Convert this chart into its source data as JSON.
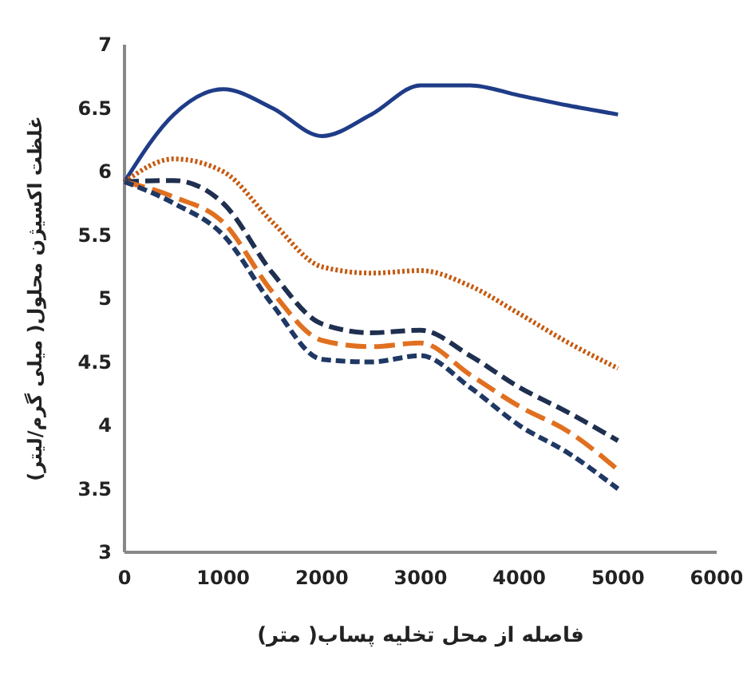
{
  "chart_data": {
    "type": "line",
    "xlabel": "فاصله از محل تخلیه پساب( متر)",
    "ylabel": "غلظت اکسیژن محلول( میلی گرم/لیتر)",
    "x": [
      0,
      500,
      1000,
      1500,
      2000,
      2500,
      3000,
      3500,
      4000,
      4500,
      5000
    ],
    "xlim": [
      0,
      6000
    ],
    "xticks": [
      0,
      1000,
      2000,
      3000,
      4000,
      5000,
      6000
    ],
    "ylim": [
      3,
      7
    ],
    "yticks": [
      3,
      3.5,
      4,
      4.5,
      5,
      5.5,
      6,
      6.5,
      7
    ],
    "grid": false,
    "marker": "none",
    "series": [
      {
        "color": "#1f3c88",
        "line_style": "solid",
        "values": [
          5.92,
          6.45,
          6.65,
          6.5,
          6.28,
          6.45,
          6.68,
          6.68,
          6.6,
          6.52,
          6.45
        ]
      },
      {
        "color": "#c55a11",
        "line_style": "dotted",
        "values": [
          5.92,
          6.1,
          6.0,
          5.6,
          5.25,
          5.2,
          5.22,
          5.1,
          4.88,
          4.65,
          4.45
        ]
      },
      {
        "color": "#1f2f4f",
        "line_style": "dashed",
        "values": [
          5.92,
          5.93,
          5.75,
          5.2,
          4.8,
          4.73,
          4.75,
          4.55,
          4.3,
          4.1,
          3.88
        ]
      },
      {
        "color": "#e07020",
        "line_style": "dashed",
        "values": [
          5.92,
          5.8,
          5.6,
          5.05,
          4.67,
          4.62,
          4.65,
          4.4,
          4.15,
          3.95,
          3.65
        ]
      },
      {
        "color": "#1f3864",
        "line_style": "dashed",
        "values": [
          5.92,
          5.75,
          5.5,
          4.95,
          4.52,
          4.5,
          4.55,
          4.3,
          4.0,
          3.78,
          3.5
        ]
      }
    ]
  }
}
